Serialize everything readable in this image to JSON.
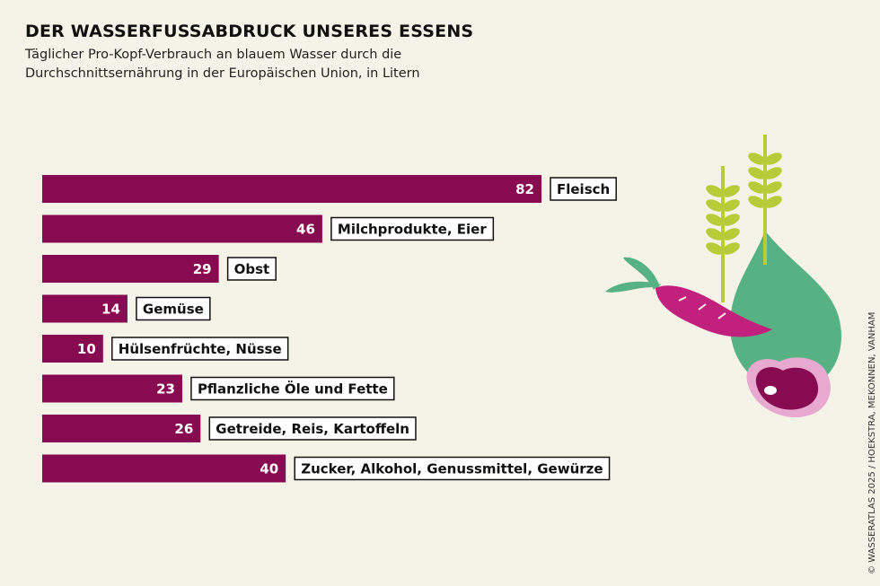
{
  "header": {
    "title": "DER WASSERFUSSABDRUCK UNSERES ESSENS",
    "subtitle": "Täglicher Pro-Kopf-Verbrauch an blauem Wasser durch die Durchschnittsernährung in der Europäischen Union, in Litern"
  },
  "credit": "© WASSERATLAS 2025 / HOEKSTRA, MEKONNEN, VANHAM",
  "colors": {
    "bar": "#880a50",
    "background": "#f5f2e7",
    "drop": "#56b282",
    "wheat": "#b8cc3a",
    "carrot": "#c2207d",
    "meat": "#880a50"
  },
  "illustration": {
    "icons": [
      "wheat-icon",
      "water-drop-icon",
      "carrot-icon",
      "steak-icon"
    ]
  },
  "chart_data": {
    "type": "bar",
    "orientation": "horizontal",
    "title": "DER WASSERFUSSABDRUCK UNSERES ESSENS",
    "subtitle": "Täglicher Pro-Kopf-Verbrauch an blauem Wasser durch die Durchschnittsernährung in der Europäischen Union, in Litern",
    "xlabel": "",
    "ylabel": "",
    "categories": [
      "Fleisch",
      "Milchprodukte, Eier",
      "Obst",
      "Gemüse",
      "Hülsenfrüchte, Nüsse",
      "Pflanzliche Öle und Fette",
      "Getreide, Reis, Kartoffeln",
      "Zucker, Alkohol, Genussmittel, Gewürze"
    ],
    "values": [
      82,
      46,
      29,
      14,
      10,
      23,
      26,
      40
    ],
    "value_labels": [
      "82",
      "46",
      "29",
      "14",
      "10",
      "23",
      "26",
      "40"
    ],
    "xlim": [
      0,
      82
    ],
    "grid": false,
    "legend": "none"
  }
}
